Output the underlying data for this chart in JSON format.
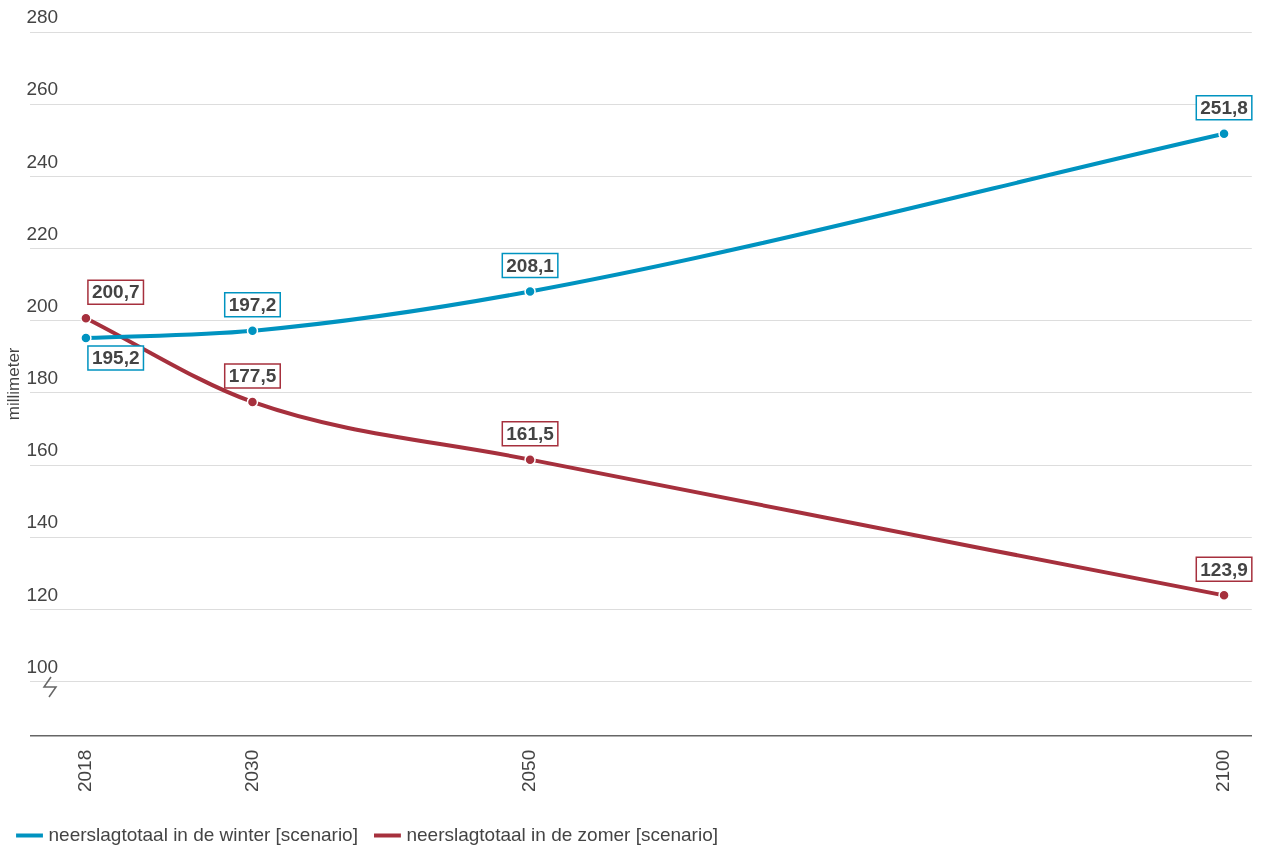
{
  "chart_data": {
    "type": "line",
    "ylabel": "millimeter",
    "x": [
      2018,
      2030,
      2050,
      2100
    ],
    "xlim": [
      2014,
      2102
    ],
    "xticks": [
      2018,
      2030,
      2050,
      2100
    ],
    "ylim": [
      85,
      280
    ],
    "yticks": [
      100,
      120,
      140,
      160,
      180,
      200,
      220,
      240,
      260,
      280
    ],
    "grid": "y",
    "legend": "bottom left",
    "marker": "circle",
    "line_style": "solid",
    "series": [
      {
        "name": "neerslagtotaal in de winter [scenario]",
        "color": "#0093c0",
        "values": [
          195.2,
          197.2,
          208.1,
          251.8
        ],
        "value_labels": [
          "195,2",
          "197,2",
          "208,1",
          "251,8"
        ]
      },
      {
        "name": "neerslagtotaal in de zomer [scenario]",
        "color": "#a6303d",
        "values": [
          200.7,
          177.5,
          161.5,
          123.9
        ],
        "value_labels": [
          "200,7",
          "177,5",
          "161,5",
          "123,9"
        ]
      }
    ]
  }
}
